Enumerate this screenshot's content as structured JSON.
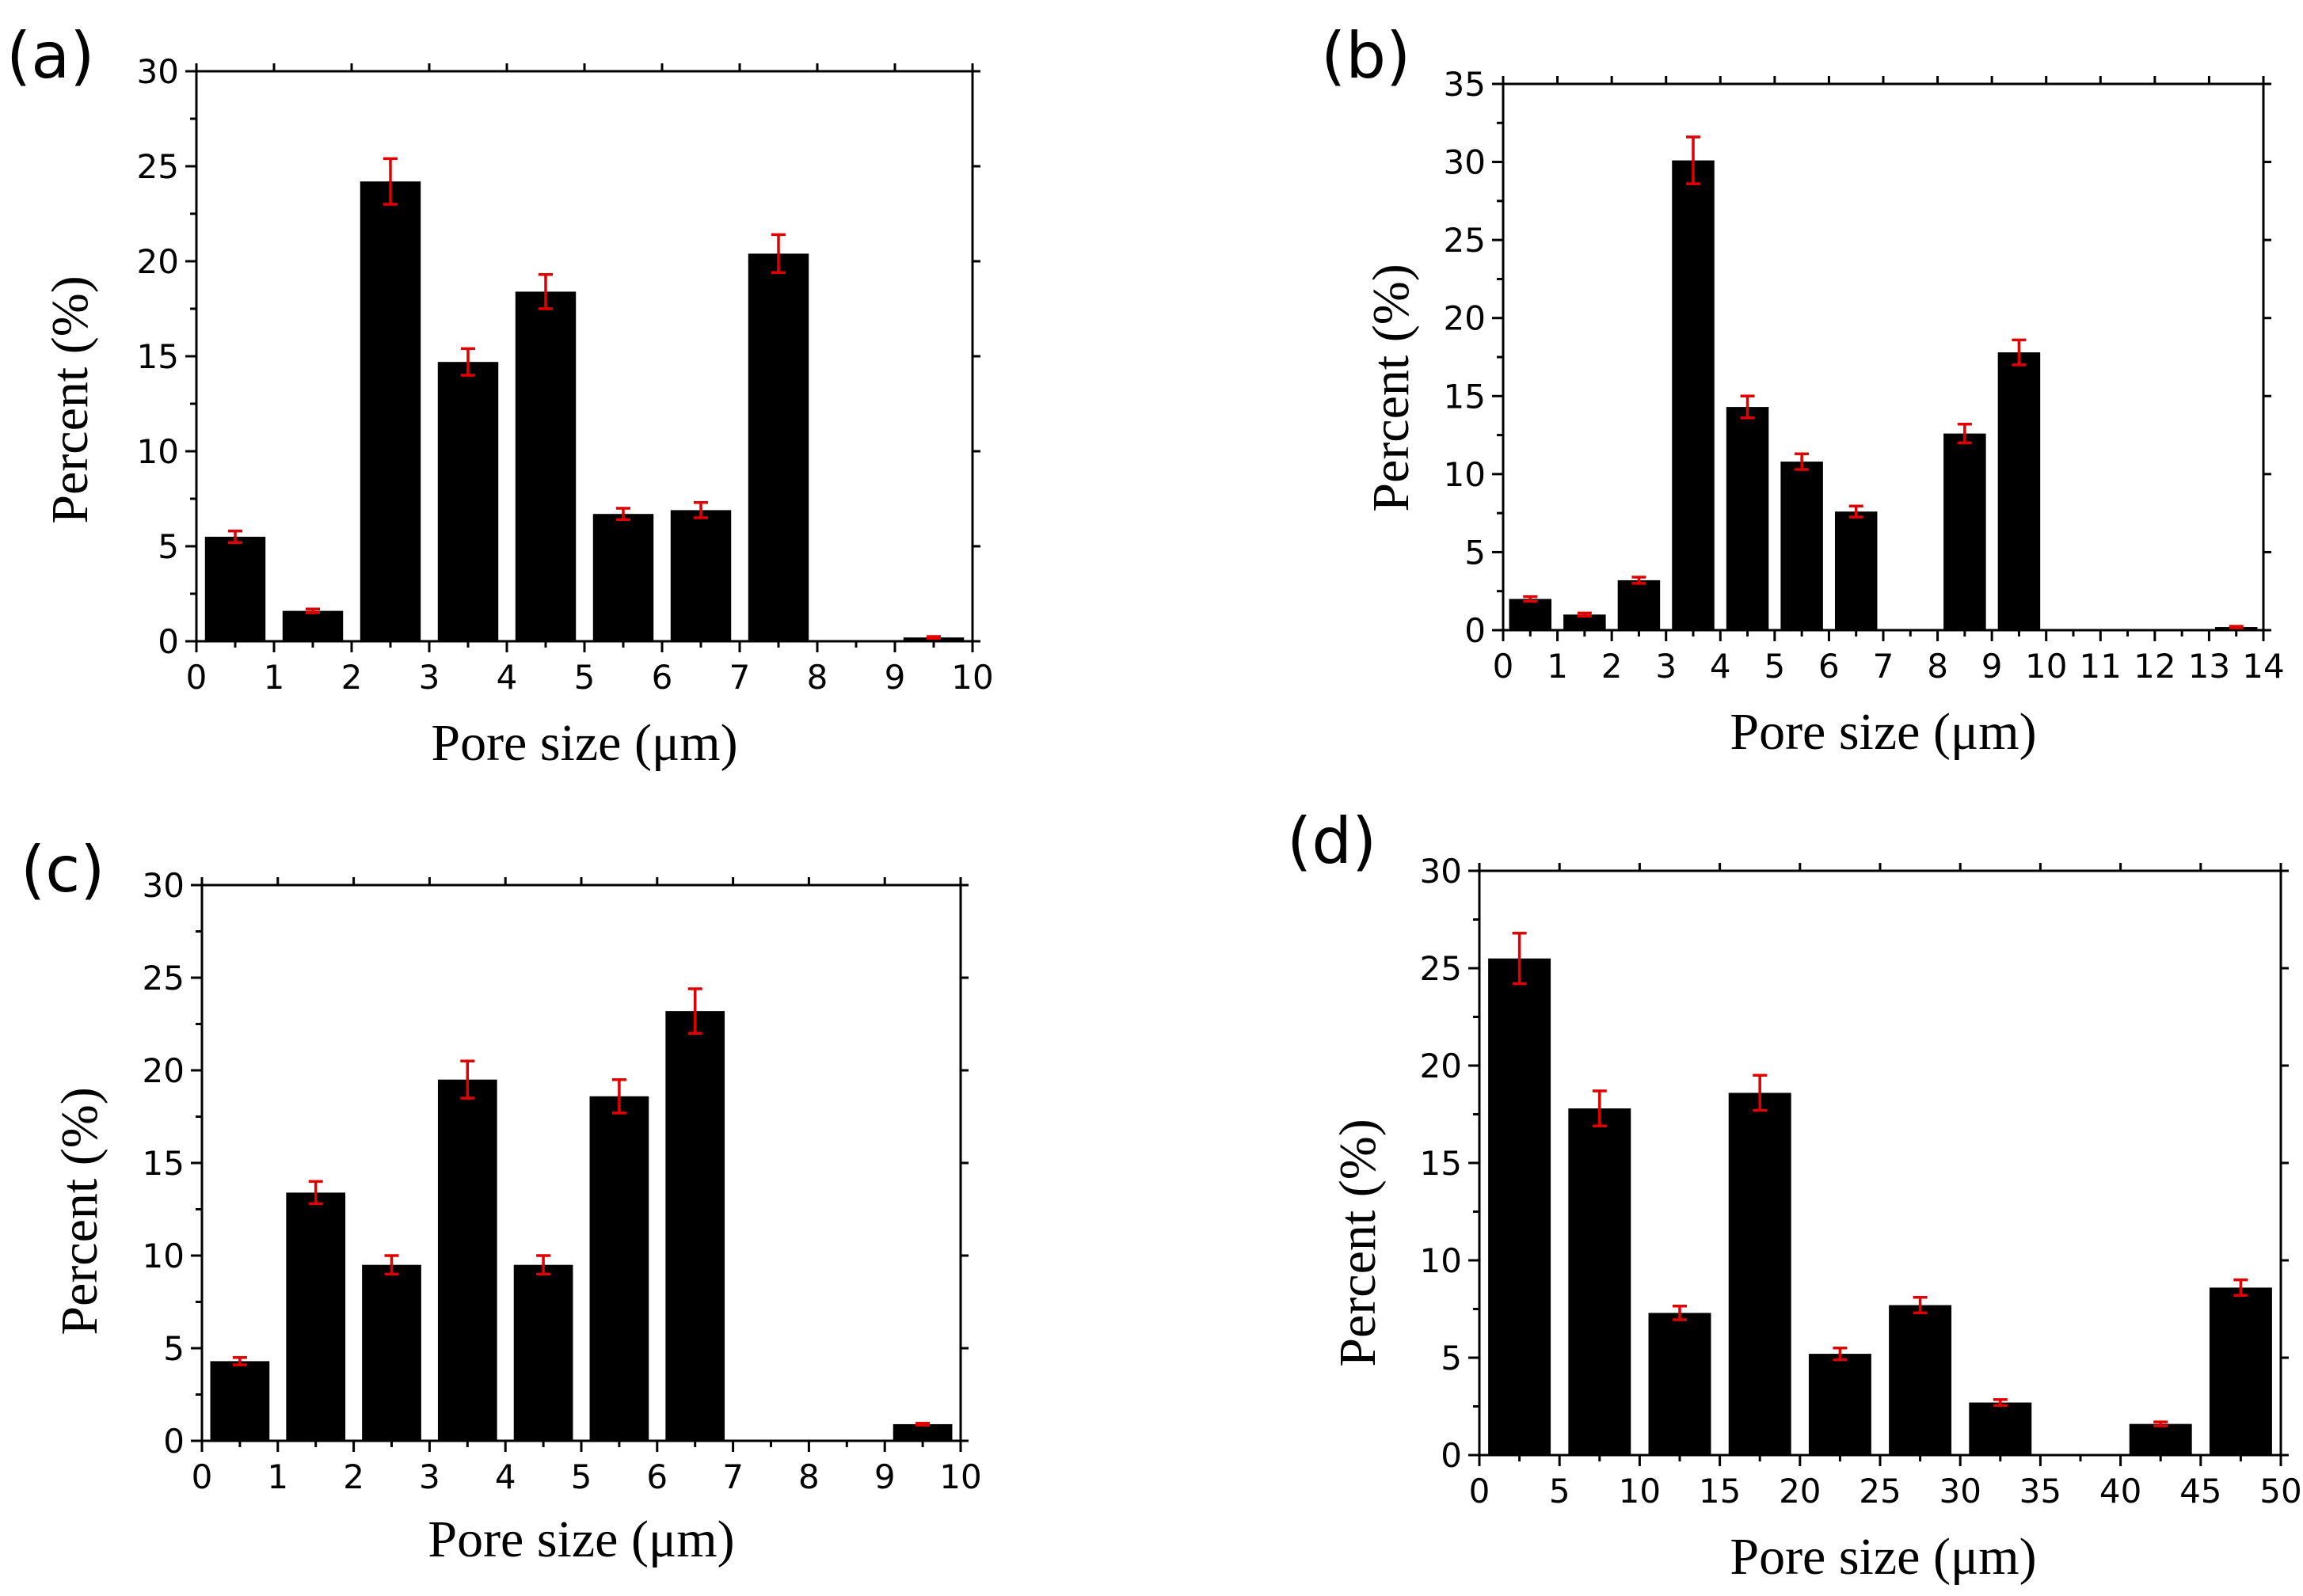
{
  "figure": {
    "panels": [
      "(a)",
      "(b)",
      "(c)",
      "(d)"
    ]
  },
  "chart_data": [
    {
      "id": "a",
      "type": "bar",
      "panel_label": "(a)",
      "xlabel": "Pore size (μm)",
      "ylabel": "Percent (%)",
      "xlim": [
        0,
        10
      ],
      "ylim": [
        0,
        30
      ],
      "xticks": [
        0,
        1,
        2,
        3,
        4,
        5,
        6,
        7,
        8,
        9,
        10
      ],
      "yticks": [
        0,
        5,
        10,
        15,
        20,
        25,
        30
      ],
      "bin_width": 1,
      "bins": [
        0.5,
        1.5,
        2.5,
        3.5,
        4.5,
        5.5,
        6.5,
        7.5,
        8.5,
        9.5
      ],
      "values": [
        5.5,
        1.6,
        24.2,
        14.7,
        18.4,
        6.7,
        6.9,
        20.4,
        0,
        0.2
      ],
      "errors": [
        0.3,
        0.1,
        1.2,
        0.7,
        0.9,
        0.3,
        0.4,
        1.0,
        0,
        0.05
      ],
      "bar_color": "#000000",
      "error_color": "#e00000"
    },
    {
      "id": "b",
      "type": "bar",
      "panel_label": "(b)",
      "xlabel": "Pore size (μm)",
      "ylabel": "Percent (%)",
      "xlim": [
        0,
        14
      ],
      "ylim": [
        0,
        35
      ],
      "xticks": [
        0,
        1,
        2,
        3,
        4,
        5,
        6,
        7,
        8,
        9,
        10,
        11,
        12,
        13,
        14
      ],
      "yticks": [
        0,
        5,
        10,
        15,
        20,
        25,
        30,
        35
      ],
      "bin_width": 1,
      "bins": [
        0.5,
        1.5,
        2.5,
        3.5,
        4.5,
        5.5,
        6.5,
        7.5,
        8.5,
        9.5,
        10.5,
        11.5,
        12.5,
        13.5
      ],
      "values": [
        2.0,
        1.0,
        3.2,
        30.1,
        14.3,
        10.8,
        7.6,
        0,
        12.6,
        17.8,
        0,
        0,
        0,
        0.2
      ],
      "errors": [
        0.15,
        0.1,
        0.2,
        1.5,
        0.7,
        0.5,
        0.35,
        0,
        0.6,
        0.8,
        0,
        0,
        0,
        0.05
      ],
      "bar_color": "#000000",
      "error_color": "#e00000"
    },
    {
      "id": "c",
      "type": "bar",
      "panel_label": "(c)",
      "xlabel": "Pore size (μm)",
      "ylabel": "Percent (%)",
      "xlim": [
        0,
        10
      ],
      "ylim": [
        0,
        30
      ],
      "xticks": [
        0,
        1,
        2,
        3,
        4,
        5,
        6,
        7,
        8,
        9,
        10
      ],
      "yticks": [
        0,
        5,
        10,
        15,
        20,
        25,
        30
      ],
      "bin_width": 1,
      "bins": [
        0.5,
        1.5,
        2.5,
        3.5,
        4.5,
        5.5,
        6.5,
        7.5,
        8.5,
        9.5
      ],
      "values": [
        4.3,
        13.4,
        9.5,
        19.5,
        9.5,
        18.6,
        23.2,
        0,
        0,
        0.9
      ],
      "errors": [
        0.2,
        0.6,
        0.5,
        1.0,
        0.5,
        0.9,
        1.2,
        0,
        0,
        0.05
      ],
      "bar_color": "#000000",
      "error_color": "#e00000"
    },
    {
      "id": "d",
      "type": "bar",
      "panel_label": "(d)",
      "xlabel": "Pore size (μm)",
      "ylabel": "Percent (%)",
      "xlim": [
        0,
        50
      ],
      "ylim": [
        0,
        30
      ],
      "xticks": [
        0,
        5,
        10,
        15,
        20,
        25,
        30,
        35,
        40,
        45,
        50
      ],
      "yticks": [
        0,
        5,
        10,
        15,
        20,
        25,
        30
      ],
      "bin_width": 5,
      "bins": [
        2.5,
        7.5,
        12.5,
        17.5,
        22.5,
        27.5,
        32.5,
        37.5,
        42.5,
        47.5
      ],
      "values": [
        25.5,
        17.8,
        7.3,
        18.6,
        5.2,
        7.7,
        2.7,
        0,
        1.6,
        8.6
      ],
      "errors": [
        1.3,
        0.9,
        0.35,
        0.9,
        0.3,
        0.4,
        0.15,
        0,
        0.1,
        0.4
      ],
      "bar_color": "#000000",
      "error_color": "#e00000"
    }
  ]
}
